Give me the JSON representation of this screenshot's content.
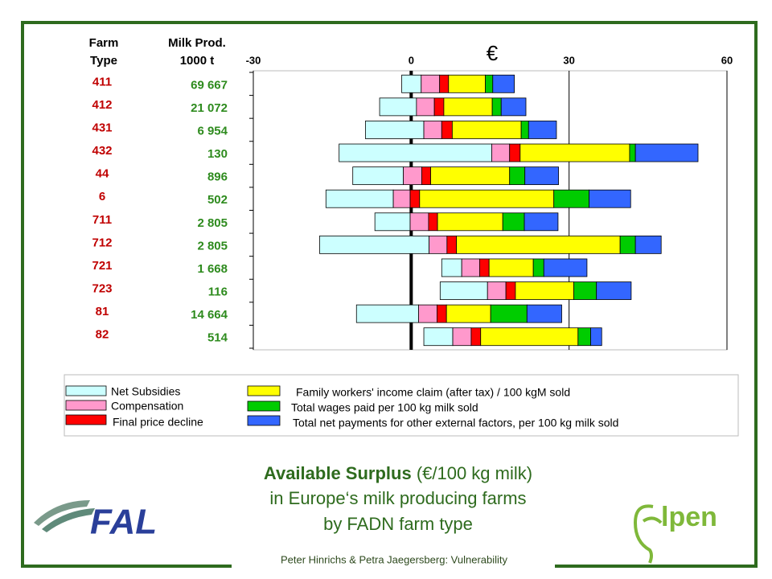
{
  "chart_data": {
    "type": "bar",
    "orientation": "horizontal",
    "column_headers": [
      [
        "Farm",
        "Type"
      ],
      [
        "Milk Prod.",
        "1000 t"
      ]
    ],
    "categories": [
      "411",
      "412",
      "431",
      "432",
      "44",
      "6",
      "711",
      "712",
      "721",
      "723",
      "81",
      "82"
    ],
    "milk_production": [
      "69 667",
      "21 072",
      "6 954",
      "130",
      "896",
      "502",
      "2 805",
      "2 805",
      "1 668",
      "116",
      "14 664",
      "514"
    ],
    "unit_label": "€",
    "bar_start": [
      -1.8,
      -6.0,
      -8.7,
      -13.7,
      -11.1,
      -16.2,
      -6.9,
      -17.4,
      5.8,
      5.5,
      -10.4,
      2.4
    ],
    "series": [
      {
        "name": "Net Subsidies",
        "color": "#ccffff",
        "values": [
          3.7,
          7.0,
          11.1,
          29.0,
          9.6,
          12.8,
          6.7,
          20.8,
          3.8,
          9.0,
          11.8,
          5.5
        ]
      },
      {
        "name": "Compensation",
        "color": "#ff99cc",
        "values": [
          3.5,
          3.4,
          3.4,
          3.4,
          3.5,
          3.2,
          3.5,
          3.4,
          3.4,
          3.5,
          3.5,
          3.5
        ]
      },
      {
        "name": "Final price decline",
        "color": "#ff0000",
        "values": [
          1.7,
          1.8,
          2.0,
          2.0,
          1.7,
          1.8,
          1.7,
          1.8,
          1.8,
          1.8,
          1.8,
          1.8
        ]
      },
      {
        "name": "Family workers' income claim (after tax) / 100 kgM sold",
        "color": "#ffff00",
        "values": [
          7.0,
          9.2,
          13.1,
          20.8,
          15.0,
          25.5,
          12.4,
          31.1,
          8.4,
          11.1,
          8.4,
          18.5
        ]
      },
      {
        "name": "Total wages paid per 100 kg  milk sold",
        "color": "#00cc00",
        "values": [
          1.4,
          1.7,
          1.4,
          1.1,
          2.9,
          6.7,
          4.1,
          2.9,
          2.0,
          4.3,
          6.9,
          2.4
        ]
      },
      {
        "name": "Total net payments for other external factors, per 100 kg milk sold",
        "color": "#3366ff",
        "values": [
          4.1,
          4.7,
          5.3,
          11.9,
          6.4,
          7.9,
          6.4,
          4.9,
          8.2,
          6.6,
          6.6,
          2.1
        ]
      }
    ],
    "xlim": [
      -30,
      60
    ],
    "xticks": [
      -30,
      0,
      30,
      60
    ]
  },
  "title": {
    "bold": "Available Surplus",
    "rest": " (€/100 kg milk)",
    "line2": "in Europe‘s milk producing farms",
    "line3": "by FADN farm type"
  },
  "footer": "Peter Hinrichs & Petra Jaegersberg: Vulnerability",
  "logos": {
    "left": "FAL",
    "right": "lpen"
  }
}
